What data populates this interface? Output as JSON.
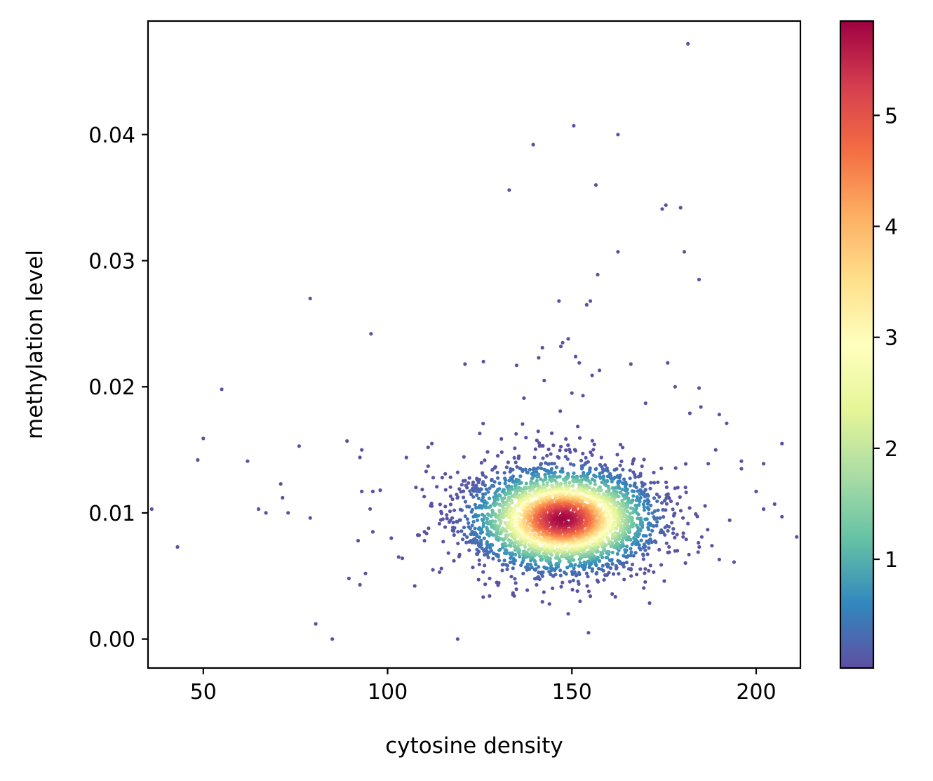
{
  "chart_data": {
    "type": "scatter",
    "title": "",
    "xlabel": "cytosine density",
    "ylabel": "methylation level",
    "xlim": [
      35,
      212
    ],
    "ylim": [
      -0.0023,
      0.049
    ],
    "xticks": [
      50,
      100,
      150,
      200
    ],
    "xtick_labels": [
      "50",
      "100",
      "150",
      "200"
    ],
    "yticks": [
      0.0,
      0.01,
      0.02,
      0.03,
      0.04
    ],
    "ytick_labels": [
      "0.00",
      "0.01",
      "0.02",
      "0.03",
      "0.04"
    ],
    "grid": false,
    "legend": "none",
    "colorbar": {
      "colormap": "Spectral_r",
      "range": [
        0.02,
        5.85
      ],
      "ticks": [
        1,
        2,
        3,
        4,
        5
      ],
      "tick_labels": [
        "1",
        "2",
        "3",
        "4",
        "5"
      ]
    },
    "colormap_stops": [
      "#5e4fa2",
      "#3288bd",
      "#66c2a5",
      "#abdda4",
      "#e6f598",
      "#ffffbf",
      "#fee08b",
      "#fdae61",
      "#f46d43",
      "#d53e4f",
      "#9e0142"
    ],
    "density_cluster": {
      "center": [
        147.5,
        0.0095
      ],
      "peak_density": 5.8,
      "spread_x": 11.5,
      "spread_y": 0.0019
    },
    "outlier_points": [
      [
        36,
        0.0103
      ],
      [
        43,
        0.0073
      ],
      [
        48.5,
        0.0142
      ],
      [
        50,
        0.0159
      ],
      [
        55,
        0.0198
      ],
      [
        62,
        0.0141
      ],
      [
        65,
        0.0103
      ],
      [
        67,
        0.01
      ],
      [
        71,
        0.0123
      ],
      [
        71.5,
        0.0112
      ],
      [
        73,
        0.01
      ],
      [
        76,
        0.0153
      ],
      [
        79,
        0.0096
      ],
      [
        79,
        0.027
      ],
      [
        80.5,
        0.0012
      ],
      [
        85,
        0.0
      ],
      [
        89,
        0.0157
      ],
      [
        89.5,
        0.0048
      ],
      [
        92,
        0.0078
      ],
      [
        92.5,
        0.0043
      ],
      [
        92.5,
        0.0144
      ],
      [
        93,
        0.0117
      ],
      [
        93,
        0.015
      ],
      [
        94,
        0.0052
      ],
      [
        95.5,
        0.0242
      ],
      [
        96,
        0.0117
      ],
      [
        96,
        0.0085
      ],
      [
        98,
        0.0118
      ],
      [
        101,
        0.008
      ],
      [
        103,
        0.0065
      ],
      [
        104,
        0.0064
      ],
      [
        110,
        0.0085
      ],
      [
        110,
        0.0078
      ],
      [
        111,
        0.0137
      ],
      [
        111,
        0.0152
      ],
      [
        112,
        0.0155
      ],
      [
        115,
        0.0095
      ],
      [
        117,
        0.0094
      ],
      [
        118,
        0.0062
      ],
      [
        119,
        0.0
      ],
      [
        121,
        0.0218
      ],
      [
        126,
        0.022
      ],
      [
        133,
        0.0356
      ],
      [
        135,
        0.0217
      ],
      [
        137,
        0.0191
      ],
      [
        139.5,
        0.0392
      ],
      [
        141,
        0.0223
      ],
      [
        142,
        0.0231
      ],
      [
        142.5,
        0.0205
      ],
      [
        146.5,
        0.0268
      ],
      [
        147,
        0.0232
      ],
      [
        147.5,
        0.0235
      ],
      [
        149,
        0.0238
      ],
      [
        150,
        0.0195
      ],
      [
        150.5,
        0.0407
      ],
      [
        151,
        0.0224
      ],
      [
        152,
        0.0219
      ],
      [
        153,
        0.0193
      ],
      [
        154,
        0.0265
      ],
      [
        154.5,
        0.0005
      ],
      [
        155,
        0.0268
      ],
      [
        155.5,
        0.0209
      ],
      [
        156.5,
        0.036
      ],
      [
        157,
        0.0289
      ],
      [
        157.5,
        0.0213
      ],
      [
        155,
        0.0034
      ],
      [
        162.5,
        0.0307
      ],
      [
        162.5,
        0.04
      ],
      [
        166,
        0.0218
      ],
      [
        170,
        0.0187
      ],
      [
        174.5,
        0.0341
      ],
      [
        175.5,
        0.0344
      ],
      [
        176,
        0.0219
      ],
      [
        178,
        0.02
      ],
      [
        179.5,
        0.0342
      ],
      [
        180.5,
        0.0307
      ],
      [
        181.5,
        0.0472
      ],
      [
        182,
        0.0179
      ],
      [
        184.5,
        0.0285
      ],
      [
        184.5,
        0.0199
      ],
      [
        185,
        0.0184
      ],
      [
        187,
        0.0139
      ],
      [
        189,
        0.015
      ],
      [
        190,
        0.0178
      ],
      [
        192,
        0.0171
      ],
      [
        194,
        0.0061
      ],
      [
        196,
        0.0141
      ],
      [
        196,
        0.0135
      ],
      [
        200,
        0.0117
      ],
      [
        202,
        0.0139
      ],
      [
        202,
        0.0103
      ],
      [
        205,
        0.0107
      ],
      [
        207,
        0.0155
      ],
      [
        207,
        0.0097
      ],
      [
        211,
        0.0081
      ],
      [
        149,
        0.002
      ],
      [
        151.5,
        0.0038
      ],
      [
        190,
        0.0063
      ],
      [
        188,
        0.0074
      ],
      [
        125,
        0.0163
      ]
    ]
  }
}
